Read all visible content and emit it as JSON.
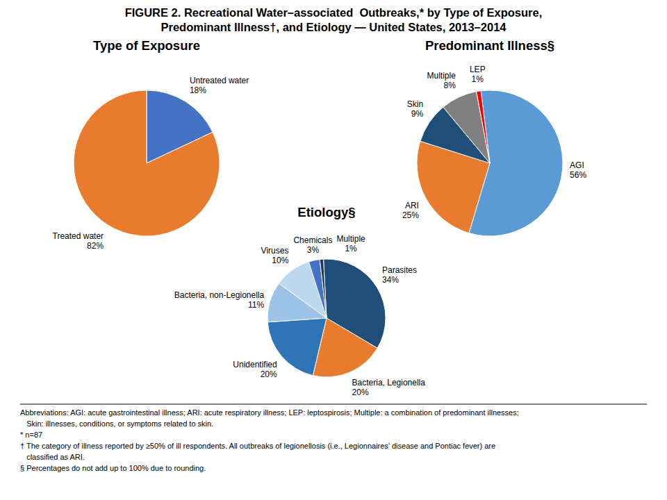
{
  "title": [
    "FIGURE 2. Recreational Water–associated  Outbreaks,* by Type of Exposure,",
    "Predominant Illness†, and Etiology — United States, 2013–2014"
  ],
  "annotations": [
    "Abbreviations: AGI: acute gastrointestinal illness; ARI: acute respiratory illness; LEP: leptospirosis; Multiple: a combination of predominant illnesses;",
    "   Skin: illnesses, conditions, or symptoms related to skin.",
    "* n=87",
    "† The category of illness reported by ≥50% of ill respondents. All outbreaks of legionellosis (i.e., Legionnaires’ disease and Pontiac fever) are",
    "   classified as ARI.",
    "§ Percentages do not add up to 100% due to rounding."
  ],
  "chart_data": [
    {
      "type": "pie",
      "title": "Type of Exposure",
      "categories": [
        "Untreated water",
        "Treated water"
      ],
      "values": [
        18,
        82
      ],
      "value_labels": [
        "18%",
        "82%"
      ],
      "colors": [
        "#4472C4",
        "#E97B2E"
      ],
      "data_labels": true
    },
    {
      "type": "pie",
      "title": "Predominant Illness§",
      "categories": [
        "AGI",
        "ARI",
        "Skin",
        "Multiple",
        "LEP"
      ],
      "values": [
        56,
        25,
        9,
        8,
        1
      ],
      "value_labels": [
        "56%",
        "25%",
        "9%",
        "8%",
        "1%"
      ],
      "colors": [
        "#5B9BD5",
        "#E97B2E",
        "#1F4E79",
        "#808080",
        "#FF0000"
      ],
      "data_labels": true
    },
    {
      "type": "pie",
      "title": "Etiology§",
      "categories": [
        "Parasites",
        "Bacteria, Legionella",
        "Unidentified",
        "Bacteria, non-Legionella",
        "Viruses",
        "Chemicals",
        "Multiple"
      ],
      "values": [
        34,
        20,
        20,
        11,
        10,
        3,
        1
      ],
      "value_labels": [
        "34%",
        "20%",
        "20%",
        "11%",
        "10%",
        "3%",
        "1%"
      ],
      "colors": [
        "#1F4E79",
        "#E97B2E",
        "#2E75B6",
        "#9DC3E6",
        "#BDD7EE",
        "#4472C4",
        "#203864"
      ],
      "data_labels": true
    }
  ]
}
